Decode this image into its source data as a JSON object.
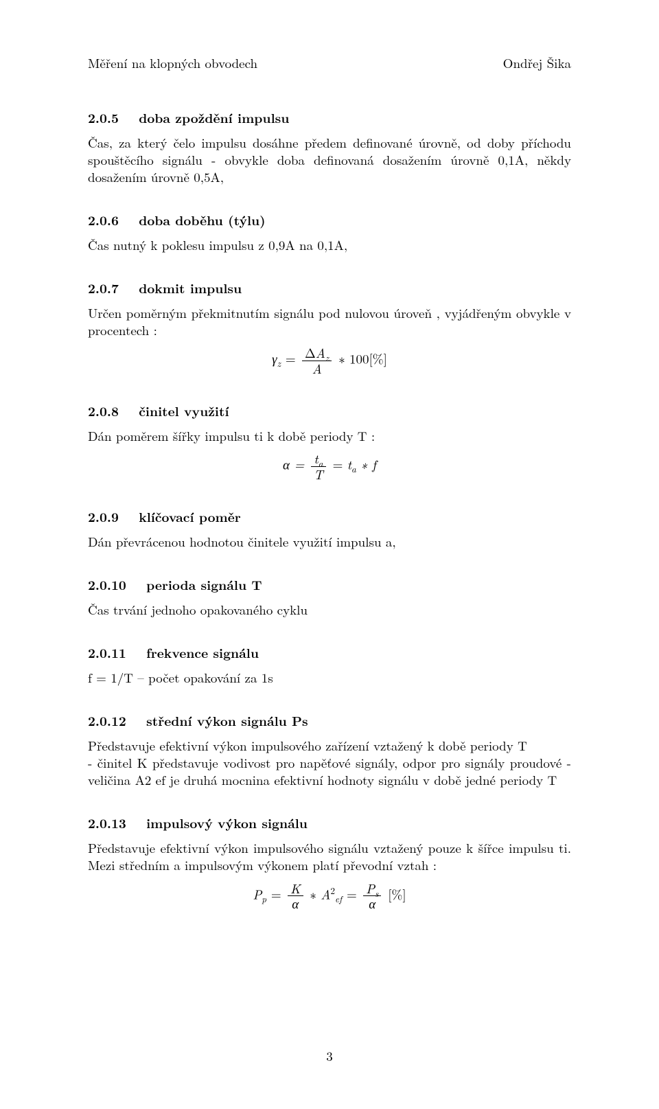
{
  "typography": {
    "font_family": "Latin Modern Roman / Computer Modern serif",
    "body_fontsize_pt": 11,
    "heading_fontsize_pt": 11,
    "heading_weight": "bold",
    "color": "#000000",
    "background": "#ffffff",
    "line_height": 1.32
  },
  "header": {
    "left": "Měření na klopných obvodech",
    "right": "Ondřej Šika"
  },
  "page_number": "3",
  "sections": [
    {
      "num": "2.0.5",
      "title": "doba zpoždění impulsu",
      "body": "Čas, za který čelo impulsu dosáhne předem definované úrovně, od doby příchodu spouštěcího signálu - obvykle doba definovaná dosažením úrovně 0,1A, někdy dosažením úrovně 0,5A,"
    },
    {
      "num": "2.0.6",
      "title": "doba doběhu (týlu)",
      "body": "Čas nutný k poklesu impulsu z 0,9A na 0,1A,"
    },
    {
      "num": "2.0.7",
      "title": "dokmit impulsu",
      "body": "Určen poměrným překmitnutím signálu pod nulovou úroveň , vyjádřeným obvykle v procentech :",
      "eq": {
        "lhs_sym": "γ",
        "lhs_sub": "z",
        "frac_num_pre": "Δ",
        "frac_num_sym": "A",
        "frac_num_sub": "z",
        "frac_den": "A",
        "tail": " ∗ 100[%]"
      }
    },
    {
      "num": "2.0.8",
      "title": "činitel využití",
      "body": "Dán poměrem šířky impulsu ti k době periody T :",
      "eq": {
        "lhs": "α = ",
        "frac_num_sym": "t",
        "frac_num_sub": "a",
        "frac_den": "T",
        "mid": " = ",
        "rhs_sym": "t",
        "rhs_sub": "a",
        "rhs_tail": " ∗ f"
      }
    },
    {
      "num": "2.0.9",
      "title": "klíčovací poměr",
      "body": "Dán převrácenou hodnotou činitele využití impulsu a,"
    },
    {
      "num": "2.0.10",
      "title": "perioda signálu T",
      "body": "Čas trvání jednoho opakovaného cyklu"
    },
    {
      "num": "2.0.11",
      "title": "frekvence signálu",
      "body": "f = 1/T – počet opakování za 1s"
    },
    {
      "num": "2.0.12",
      "title": "střední výkon signálu Ps",
      "body": "Představuje efektivní výkon impulsového zařízení vztažený k době periody T\n - činitel K představuje vodivost pro napěťové signály, odpor pro signály proudové - veličina A2 ef je druhá mocnina efektivní hodnoty signálu v době jedné periody T"
    },
    {
      "num": "2.0.13",
      "title": "impulsový výkon signálu",
      "body": "Představuje efektivní výkon impulsového signálu vztažený pouze k šířce impulsu ti. Mezi středním a impulsovým výkonem platí převodní vztah :",
      "eq": {
        "lhs_sym": "P",
        "lhs_sub": "p",
        "eqs": " = ",
        "f1_num": "K",
        "f1_den": "α",
        "mid1": " ∗ ",
        "A_sym": "A",
        "A_sup": "2",
        "A_sub": "ef",
        "eqs2": " = ",
        "f2_num_sym": "P",
        "f2_num_sub": "s",
        "f2_den": "α",
        "tail": "[%]"
      }
    }
  ]
}
